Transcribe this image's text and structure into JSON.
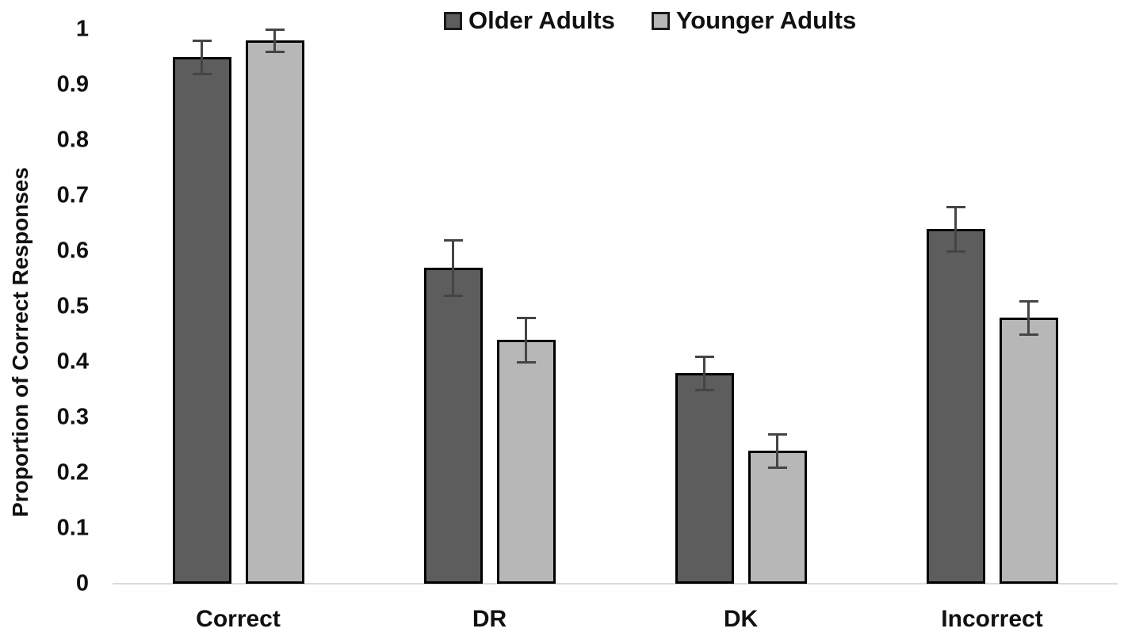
{
  "chart_data": {
    "type": "bar",
    "ylabel": "Proportion of Correct Responses",
    "ylim": [
      0,
      1
    ],
    "grid": false,
    "legend_position": "top-center",
    "ytick_labels": [
      "0",
      "0.1",
      "0.2",
      "0.3",
      "0.4",
      "0.5",
      "0.6",
      "0.7",
      "0.8",
      "0.9",
      "1"
    ],
    "ytick_values": [
      0,
      0.1,
      0.2,
      0.3,
      0.4,
      0.5,
      0.6,
      0.7,
      0.8,
      0.9,
      1
    ],
    "categories": [
      "Correct",
      "DR",
      "DK",
      "Incorrect"
    ],
    "series": [
      {
        "name": "Older Adults",
        "color": "#5d5d5d",
        "values": [
          0.95,
          0.57,
          0.38,
          0.64
        ],
        "errors": [
          0.03,
          0.05,
          0.03,
          0.04
        ]
      },
      {
        "name": "Younger Adults",
        "color": "#b7b7b7",
        "values": [
          0.98,
          0.44,
          0.24,
          0.48
        ],
        "errors": [
          0.02,
          0.04,
          0.03,
          0.03
        ]
      }
    ],
    "colors": {
      "bar_border": "#000000",
      "error_bar": "#454545",
      "axis_line": "#d9d9d9",
      "text": "#111111",
      "background": "#ffffff"
    }
  }
}
